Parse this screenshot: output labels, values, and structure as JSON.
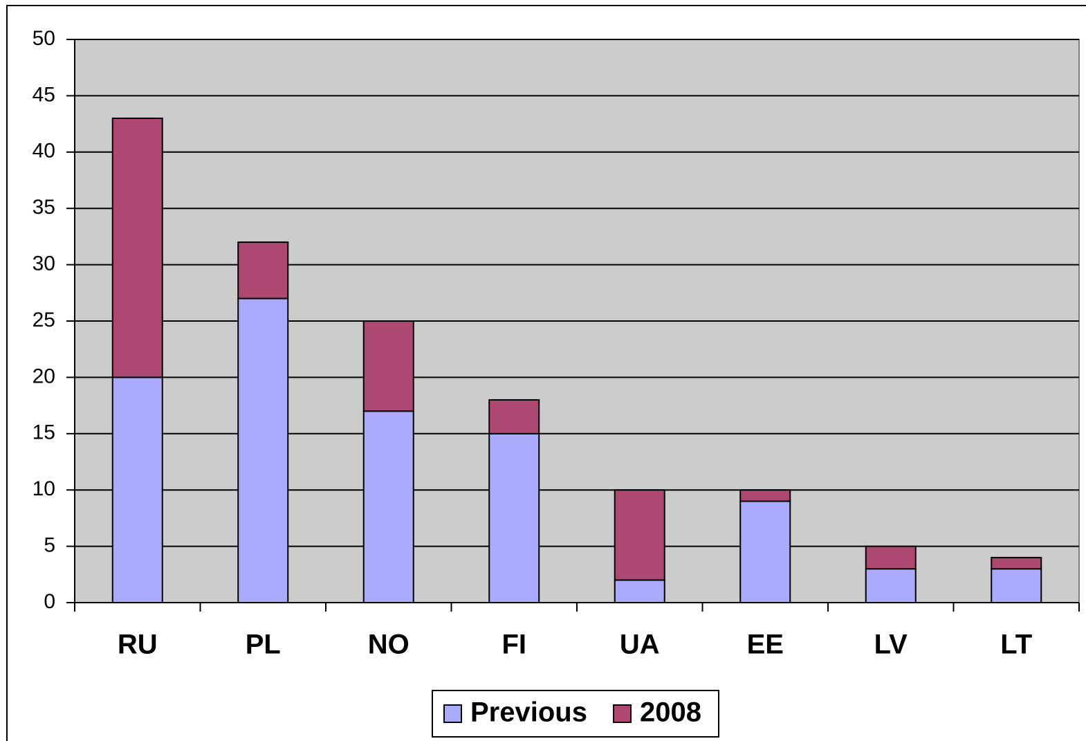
{
  "chart_data": {
    "type": "bar",
    "stacked": true,
    "categories": [
      "RU",
      "PL",
      "NO",
      "FI",
      "UA",
      "EE",
      "LV",
      "LT"
    ],
    "series": [
      {
        "name": "Previous",
        "color": "#aaaaff",
        "values": [
          20,
          27,
          17,
          15,
          2,
          9,
          3,
          3
        ]
      },
      {
        "name": "2008",
        "color": "#ad4873",
        "values": [
          23,
          5,
          8,
          3,
          8,
          1,
          2,
          1
        ]
      }
    ],
    "ylim": [
      0,
      50
    ],
    "yticks": [
      0,
      5,
      10,
      15,
      20,
      25,
      30,
      35,
      40,
      45,
      50
    ],
    "grid": true,
    "legend": "bottom",
    "plot_background": "#cccccc"
  }
}
